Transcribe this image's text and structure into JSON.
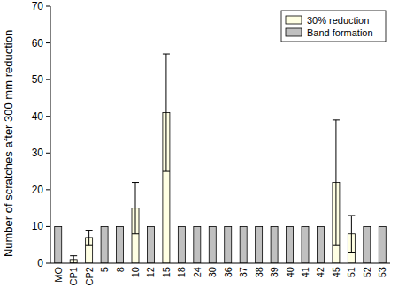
{
  "chart_data": {
    "type": "bar",
    "y_label": "Number of scratches after 300 mm reduction",
    "categories": [
      "MO",
      "CP1",
      "CP2",
      "5",
      "8",
      "10",
      "12",
      "15",
      "18",
      "24",
      "30",
      "36",
      "37",
      "38",
      "39",
      "40",
      "41",
      "42",
      "45",
      "51",
      "52",
      "53"
    ],
    "series": [
      {
        "name": "30% reduction",
        "color": "#ffffe3",
        "values": [
          null,
          1,
          7,
          null,
          null,
          15,
          null,
          41,
          null,
          null,
          null,
          null,
          null,
          null,
          null,
          null,
          null,
          null,
          22,
          8,
          null,
          null
        ],
        "errors": [
          null,
          1,
          2,
          null,
          null,
          7,
          null,
          16,
          null,
          null,
          null,
          null,
          null,
          null,
          null,
          null,
          null,
          null,
          17,
          5,
          null,
          null
        ]
      },
      {
        "name": "Band formation",
        "color": "#c0c0c0",
        "values": [
          10,
          null,
          null,
          10,
          10,
          null,
          10,
          null,
          10,
          10,
          10,
          10,
          10,
          10,
          10,
          10,
          10,
          10,
          null,
          null,
          10,
          10
        ]
      }
    ],
    "ylim": [
      0,
      70
    ],
    "yticks": [
      0,
      10,
      20,
      30,
      40,
      50,
      60,
      70
    ],
    "legend": "top-right"
  }
}
